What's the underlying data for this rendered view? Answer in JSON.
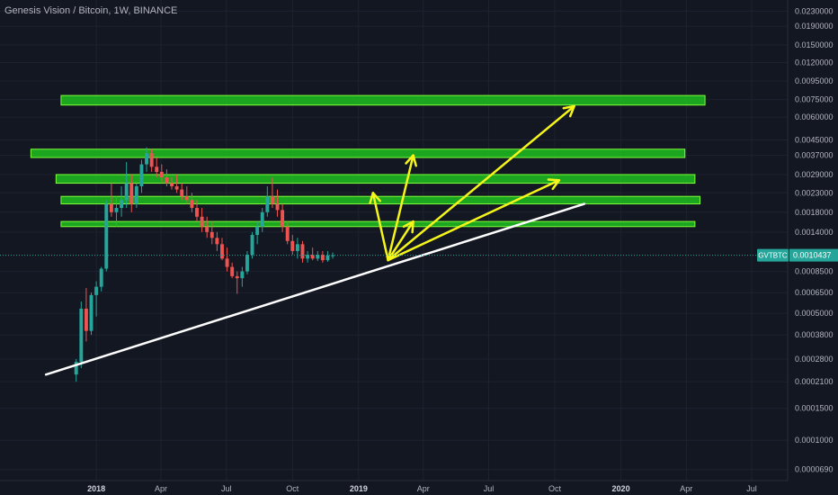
{
  "header": {
    "title": "Genesis Vision / Bitcoin, 1W, BINANCE"
  },
  "colors": {
    "background": "#131722",
    "up": "#26a69a",
    "down": "#ef5350",
    "zone_fill": "#1fbf1f",
    "zone_stroke": "#7fff3a",
    "arrow": "#f5f51b",
    "trendline": "#ffffff",
    "price_line": "#26a69a",
    "grid": "#1e2230",
    "axis_text": "#b2b5be"
  },
  "chart_data": {
    "type": "candlestick",
    "symbol": "GVTBTC",
    "timeframe": "1W",
    "exchange": "BINANCE",
    "y_scale": "log",
    "ylim": [
      6e-05,
      0.0265
    ],
    "y_ticks": [
      "0.0000690",
      "0.0001000",
      "0.0001500",
      "0.0002100",
      "0.0002800",
      "0.0003800",
      "0.0005000",
      "0.0006500",
      "0.0008500",
      "0.0014000",
      "0.0018000",
      "0.0023000",
      "0.0029000",
      "0.0037000",
      "0.0045000",
      "0.0060000",
      "0.0075000",
      "0.0095000",
      "0.0120000",
      "0.0150000",
      "0.0190000",
      "0.0230000"
    ],
    "x_ticks": [
      {
        "label": "2018",
        "date": "2018-01-01",
        "bold": true
      },
      {
        "label": "Apr",
        "date": "2018-04-01",
        "bold": false
      },
      {
        "label": "Jul",
        "date": "2018-07-01",
        "bold": false
      },
      {
        "label": "Oct",
        "date": "2018-10-01",
        "bold": false
      },
      {
        "label": "2019",
        "date": "2019-01-01",
        "bold": true
      },
      {
        "label": "Apr",
        "date": "2019-04-01",
        "bold": false
      },
      {
        "label": "Jul",
        "date": "2019-07-01",
        "bold": false
      },
      {
        "label": "Oct",
        "date": "2019-10-01",
        "bold": false
      },
      {
        "label": "2020",
        "date": "2020-01-01",
        "bold": true
      },
      {
        "label": "Apr",
        "date": "2020-04-01",
        "bold": false
      },
      {
        "label": "Jul",
        "date": "2020-07-01",
        "bold": false
      }
    ],
    "x_range": [
      "2017-08-20",
      "2020-08-20"
    ],
    "price_label": {
      "symbol": "GVTBTC",
      "value": "0.0010437",
      "price": 0.0010437
    },
    "candles_start": "2017-12-04",
    "candles": [
      [
        0.00023,
        0.00028,
        0.00021,
        0.00027
      ],
      [
        0.00027,
        0.00058,
        0.00025,
        0.00053
      ],
      [
        0.00053,
        0.00069,
        0.00035,
        0.0004
      ],
      [
        0.0004,
        0.00065,
        0.00038,
        0.00063
      ],
      [
        0.00063,
        0.00075,
        0.00048,
        0.0007
      ],
      [
        0.0007,
        0.0009,
        0.00066,
        0.00088
      ],
      [
        0.00088,
        0.0021,
        0.00085,
        0.002
      ],
      [
        0.002,
        0.0026,
        0.0017,
        0.0018
      ],
      [
        0.0018,
        0.0022,
        0.0015,
        0.0019
      ],
      [
        0.0019,
        0.0025,
        0.0017,
        0.0021
      ],
      [
        0.0021,
        0.0034,
        0.0019,
        0.0026
      ],
      [
        0.0026,
        0.0029,
        0.0018,
        0.002
      ],
      [
        0.002,
        0.0026,
        0.0019,
        0.0025
      ],
      [
        0.0025,
        0.0035,
        0.0023,
        0.0033
      ],
      [
        0.0033,
        0.0041,
        0.003,
        0.0038
      ],
      [
        0.0038,
        0.004,
        0.003,
        0.0032
      ],
      [
        0.0032,
        0.0036,
        0.0028,
        0.003
      ],
      [
        0.003,
        0.0033,
        0.0026,
        0.0028
      ],
      [
        0.0028,
        0.0031,
        0.0025,
        0.0026
      ],
      [
        0.0026,
        0.0028,
        0.0024,
        0.0025
      ],
      [
        0.0025,
        0.0029,
        0.0023,
        0.0024
      ],
      [
        0.0024,
        0.0026,
        0.0021,
        0.0022
      ],
      [
        0.0022,
        0.0025,
        0.002,
        0.0021
      ],
      [
        0.0021,
        0.0023,
        0.0018,
        0.0019
      ],
      [
        0.0019,
        0.0021,
        0.0016,
        0.0017
      ],
      [
        0.0017,
        0.0019,
        0.0014,
        0.0015
      ],
      [
        0.0015,
        0.0017,
        0.0013,
        0.0014
      ],
      [
        0.0014,
        0.0016,
        0.0012,
        0.0013
      ],
      [
        0.0013,
        0.0014,
        0.0011,
        0.0012
      ],
      [
        0.0012,
        0.0013,
        0.00098,
        0.001
      ],
      [
        0.001,
        0.00115,
        0.00085,
        0.0009
      ],
      [
        0.0009,
        0.00095,
        0.00078,
        0.0008
      ],
      [
        0.0008,
        0.00085,
        0.00064,
        0.00078
      ],
      [
        0.00078,
        0.0009,
        0.0007,
        0.00085
      ],
      [
        0.00085,
        0.0011,
        0.00082,
        0.00105
      ],
      [
        0.00105,
        0.0014,
        0.001,
        0.00135
      ],
      [
        0.00135,
        0.0016,
        0.0012,
        0.0015
      ],
      [
        0.0015,
        0.0019,
        0.0014,
        0.0018
      ],
      [
        0.0018,
        0.0025,
        0.0017,
        0.0022
      ],
      [
        0.0022,
        0.0028,
        0.0019,
        0.002
      ],
      [
        0.002,
        0.0024,
        0.0017,
        0.00185
      ],
      [
        0.00185,
        0.002,
        0.0014,
        0.0015
      ],
      [
        0.0015,
        0.0016,
        0.0012,
        0.00125
      ],
      [
        0.00125,
        0.00135,
        0.00105,
        0.0011
      ],
      [
        0.0011,
        0.0013,
        0.001,
        0.0012
      ],
      [
        0.0012,
        0.00125,
        0.00095,
        0.001
      ],
      [
        0.001,
        0.0011,
        0.00095,
        0.00105
      ],
      [
        0.00105,
        0.00115,
        0.00098,
        0.001
      ],
      [
        0.001,
        0.0011,
        0.00097,
        0.00105
      ],
      [
        0.00105,
        0.0011,
        0.00095,
        0.00098
      ],
      [
        0.00098,
        0.0011,
        0.00096,
        0.00104
      ],
      [
        0.00104,
        0.00108,
        0.001,
        0.001043
      ]
    ],
    "zones": [
      {
        "start": "2017-11-13",
        "end": "2020-04-27",
        "low": 0.007,
        "high": 0.0079
      },
      {
        "start": "2017-10-02",
        "end": "2020-03-30",
        "low": 0.0036,
        "high": 0.004
      },
      {
        "start": "2017-11-06",
        "end": "2020-04-13",
        "low": 0.0026,
        "high": 0.0029
      },
      {
        "start": "2017-11-13",
        "end": "2020-04-20",
        "low": 0.002,
        "high": 0.0022
      },
      {
        "start": "2017-11-13",
        "end": "2020-04-13",
        "low": 0.0015,
        "high": 0.0016
      }
    ],
    "trendline": {
      "from": {
        "date": "2017-10-23",
        "value": 0.00023
      },
      "to": {
        "date": "2019-11-11",
        "value": 0.002
      }
    },
    "arrows": [
      {
        "from": {
          "date": "2019-02-11",
          "value": 0.00098
        },
        "to": {
          "date": "2019-01-21",
          "value": 0.0023
        }
      },
      {
        "from": {
          "date": "2019-02-11",
          "value": 0.00098
        },
        "to": {
          "date": "2019-03-18",
          "value": 0.0037
        }
      },
      {
        "from": {
          "date": "2019-02-11",
          "value": 0.00098
        },
        "to": {
          "date": "2019-03-18",
          "value": 0.0016
        }
      },
      {
        "from": {
          "date": "2019-02-11",
          "value": 0.00098
        },
        "to": {
          "date": "2019-10-07",
          "value": 0.0027
        }
      },
      {
        "from": {
          "date": "2019-02-11",
          "value": 0.00098
        },
        "to": {
          "date": "2019-10-28",
          "value": 0.0069
        }
      }
    ]
  }
}
